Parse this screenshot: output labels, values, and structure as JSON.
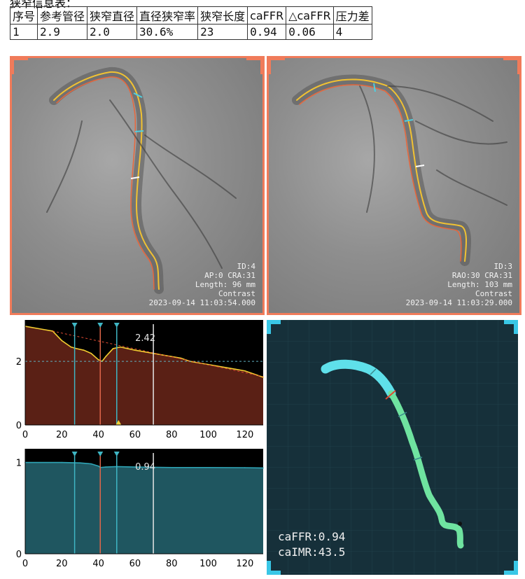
{
  "caption": "狭窄信息表：",
  "table": {
    "headers": [
      "序号",
      "参考管径",
      "狭窄直径",
      "直径狭窄率",
      "狭窄长度",
      "caFFR",
      "△caFFR",
      "压力差"
    ],
    "row": [
      "1",
      "2.9",
      "2.0",
      "30.6%",
      "23",
      "0.94",
      "0.06",
      "4"
    ]
  },
  "colors": {
    "frame": "#f07b5a",
    "model_bg": "#16303a",
    "vessel_model": "#6fe3a0",
    "vessel_prox": "#5fe0ea",
    "pressure_fill": "#5a2015",
    "ffr_fill": "#1f5660"
  },
  "angio_left": {
    "id": "ID:4",
    "angle": "AP:0 CRA:31",
    "length": "Length: 96 mm",
    "mode": "Contrast",
    "timestamp": "2023-09-14 11:03:54.000"
  },
  "angio_right": {
    "id": "ID:3",
    "angle": "RAO:30 CRA:31",
    "length": "Length: 103 mm",
    "mode": "Contrast",
    "timestamp": "2023-09-14 11:03:29.000"
  },
  "chart_data": [
    {
      "type": "area",
      "name": "pressure",
      "annotation": "2.42",
      "xlim": [
        0,
        130
      ],
      "ylim": [
        0,
        3.3
      ],
      "xticks": [
        0,
        20,
        40,
        60,
        80,
        100,
        120
      ],
      "yticks": [
        0,
        2
      ],
      "markers_x": [
        27,
        41,
        50,
        70
      ],
      "reference_y": 2.0,
      "x": [
        0,
        10,
        15,
        20,
        25,
        28,
        32,
        36,
        40,
        42,
        44,
        48,
        52,
        56,
        60,
        65,
        70,
        75,
        80,
        85,
        90,
        95,
        100,
        105,
        110,
        115,
        120,
        125,
        130
      ],
      "y": [
        3.1,
        3.0,
        2.95,
        2.65,
        2.45,
        2.4,
        2.35,
        2.25,
        2.05,
        2.0,
        2.15,
        2.4,
        2.45,
        2.4,
        2.35,
        2.3,
        2.25,
        2.2,
        2.15,
        2.1,
        2.0,
        1.95,
        1.9,
        1.85,
        1.8,
        1.75,
        1.7,
        1.6,
        1.5
      ]
    },
    {
      "type": "area",
      "name": "ffr",
      "annotation": "0.94",
      "xlim": [
        0,
        130
      ],
      "ylim": [
        0,
        1.15
      ],
      "xticks": [
        0,
        20,
        40,
        60,
        80,
        100,
        120
      ],
      "yticks": [
        0,
        1
      ],
      "markers_x": [
        27,
        41,
        50,
        70
      ],
      "x": [
        0,
        20,
        30,
        36,
        40,
        41,
        44,
        50,
        60,
        80,
        100,
        120,
        130
      ],
      "y": [
        1.0,
        1.0,
        0.995,
        0.985,
        0.96,
        0.945,
        0.95,
        0.955,
        0.95,
        0.945,
        0.945,
        0.943,
        0.94
      ]
    }
  ],
  "model": {
    "caffr": "caFFR:0.94",
    "caimr": "caIMR:43.5"
  }
}
